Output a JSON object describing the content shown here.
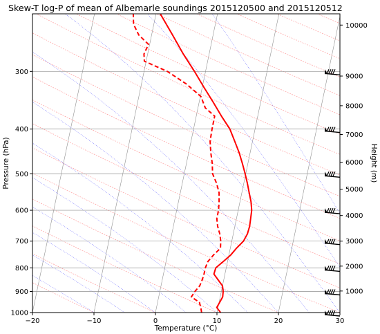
{
  "chart_data": {
    "type": "line",
    "title": "Skew-T log-P of mean of Albemarle soundings 2015120500 and 2015120512",
    "xlabel": "Temperature (°C)",
    "ylabel": "Pressure (hPa)",
    "y2label": "Height (m)",
    "xlim": [
      -20,
      30
    ],
    "ylim": [
      1000,
      225
    ],
    "y_scale": "log",
    "x_ticks": [
      "−20",
      "−10",
      "0",
      "10",
      "20",
      "30"
    ],
    "x_tick_values": [
      -20,
      -10,
      0,
      10,
      20,
      30
    ],
    "y_ticks": [
      1000,
      900,
      800,
      700,
      600,
      500,
      400,
      300
    ],
    "height_ticks": [
      {
        "label": "10000",
        "p": 238
      },
      {
        "label": "9000",
        "p": 307
      },
      {
        "label": "8000",
        "p": 356
      },
      {
        "label": "7000",
        "p": 411
      },
      {
        "label": "6000",
        "p": 472
      },
      {
        "label": "5000",
        "p": 540
      },
      {
        "label": "4000",
        "p": 616
      },
      {
        "label": "3000",
        "p": 700
      },
      {
        "label": "2000",
        "p": 793
      },
      {
        "label": "1000",
        "p": 898
      }
    ],
    "grid": true,
    "series": [
      {
        "kind": "temperature",
        "color": "#ff0000",
        "style": "solid",
        "points": [
          [
            1000,
            10.6
          ],
          [
            975,
            9.8
          ],
          [
            950,
            10.1
          ],
          [
            925,
            10.4
          ],
          [
            900,
            10.3
          ],
          [
            875,
            10.0
          ],
          [
            850,
            9.1
          ],
          [
            825,
            8.2
          ],
          [
            800,
            8.3
          ],
          [
            775,
            9.3
          ],
          [
            750,
            10.3
          ],
          [
            725,
            11.0
          ],
          [
            700,
            11.9
          ],
          [
            675,
            12.3
          ],
          [
            650,
            12.4
          ],
          [
            625,
            12.3
          ],
          [
            600,
            12.2
          ],
          [
            575,
            11.8
          ],
          [
            550,
            11.2
          ],
          [
            525,
            10.6
          ],
          [
            500,
            9.9
          ],
          [
            475,
            9.1
          ],
          [
            450,
            8.2
          ],
          [
            425,
            7.1
          ],
          [
            400,
            5.9
          ],
          [
            375,
            4.1
          ],
          [
            350,
            2.3
          ],
          [
            325,
            0.3
          ],
          [
            300,
            -1.8
          ],
          [
            275,
            -4.2
          ],
          [
            250,
            -6.6
          ],
          [
            225,
            -9.3
          ]
        ]
      },
      {
        "kind": "dewpoint",
        "color": "#ff0000",
        "style": "dashed",
        "points": [
          [
            1000,
            7.5
          ],
          [
            975,
            7.2
          ],
          [
            950,
            6.8
          ],
          [
            925,
            5.3
          ],
          [
            900,
            5.7
          ],
          [
            875,
            6.3
          ],
          [
            850,
            6.5
          ],
          [
            825,
            6.6
          ],
          [
            800,
            6.6
          ],
          [
            775,
            6.8
          ],
          [
            750,
            7.5
          ],
          [
            725,
            8.4
          ],
          [
            700,
            8.2
          ],
          [
            675,
            7.8
          ],
          [
            650,
            7.2
          ],
          [
            625,
            6.8
          ],
          [
            600,
            6.8
          ],
          [
            575,
            6.6
          ],
          [
            550,
            6.3
          ],
          [
            525,
            5.6
          ],
          [
            500,
            4.6
          ],
          [
            475,
            4.2
          ],
          [
            450,
            3.6
          ],
          [
            425,
            3.1
          ],
          [
            400,
            3.0
          ],
          [
            375,
            3.0
          ],
          [
            360,
            1.2
          ],
          [
            340,
            0.1
          ],
          [
            320,
            -2.6
          ],
          [
            300,
            -6.2
          ],
          [
            285,
            -10.3
          ],
          [
            275,
            -10.6
          ],
          [
            262,
            -10.2
          ],
          [
            250,
            -12.1
          ],
          [
            237,
            -13.3
          ],
          [
            225,
            -13.7
          ]
        ]
      }
    ],
    "wind_barbs": [
      {
        "p": 1000
      },
      {
        "p": 900
      },
      {
        "p": 800
      },
      {
        "p": 700
      },
      {
        "p": 600
      },
      {
        "p": 500
      },
      {
        "p": 400
      },
      {
        "p": 300
      }
    ],
    "background_lines": {
      "isotherms_color": "#909090",
      "dry_adiabats_color": "#ff9090",
      "moist_adiabats_color": "#7070ff"
    }
  }
}
